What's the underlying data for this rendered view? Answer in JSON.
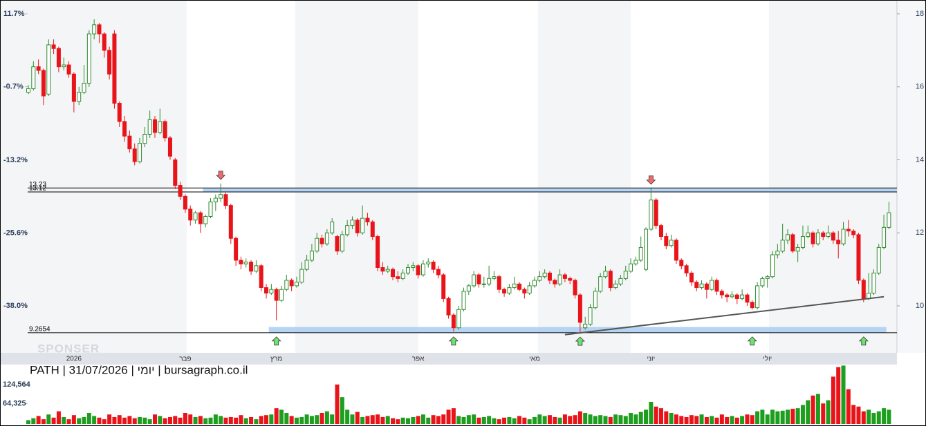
{
  "chart_data": {
    "type": "candlestick",
    "caption": "PATH | 31/07/2026 | יומי | bursagraph.co.il",
    "watermark": "SPONSER",
    "up_color": "#2e8b2e",
    "down_color": "#e8141a",
    "ylim": [
      8.733,
      18.284
    ],
    "yticks": [
      10,
      12,
      14,
      16,
      18
    ],
    "y2lim": [
      -45.87,
      13.46
    ],
    "y2ticks": [
      {
        "value": 11.7,
        "label": "11.7%"
      },
      {
        "value": -0.7,
        "label": "-0.7%"
      },
      {
        "value": -13.2,
        "label": "-13.2%"
      },
      {
        "value": -25.6,
        "label": "-25.6%"
      },
      {
        "value": -38.0,
        "label": "-38.0%"
      }
    ],
    "vlim": [
      0,
      151000
    ],
    "vticks": [
      {
        "value": 124564,
        "label": "124,564"
      },
      {
        "value": 64325,
        "label": "64,325"
      }
    ],
    "x_labels": [
      {
        "index": 9,
        "label": "2026"
      },
      {
        "index": 31,
        "label": "פבר"
      },
      {
        "index": 49,
        "label": "מרץ"
      },
      {
        "index": 77,
        "label": "אפר"
      },
      {
        "index": 100,
        "label": "מאי"
      },
      {
        "index": 123,
        "label": "יוני"
      },
      {
        "index": 146,
        "label": "יולי"
      }
    ],
    "levels": [
      13.23,
      13.12,
      9.2654
    ],
    "zones": [
      {
        "from": 13.12,
        "to": 13.23,
        "start": 35,
        "end": 171
      },
      {
        "from": 9.2654,
        "to": 9.42,
        "start": 48,
        "end": 169
      }
    ],
    "trendline": [
      [
        106,
        9.21
      ],
      [
        169,
        10.25
      ]
    ],
    "signals": {
      "up": [
        49,
        84,
        109,
        143,
        165
      ],
      "down": [
        38,
        123
      ]
    },
    "candles": [
      [
        15.85,
        16.05,
        15.8,
        15.95
      ],
      [
        15.95,
        16.7,
        15.9,
        16.55
      ],
      [
        16.55,
        16.75,
        16.35,
        16.45
      ],
      [
        16.45,
        16.5,
        15.5,
        15.75
      ],
      [
        15.8,
        17.3,
        15.75,
        17.15
      ],
      [
        17.15,
        17.3,
        16.9,
        17.05
      ],
      [
        17.05,
        17.1,
        16.4,
        16.55
      ],
      [
        16.55,
        16.8,
        16.45,
        16.6
      ],
      [
        16.6,
        16.7,
        16.25,
        16.35
      ],
      [
        16.35,
        16.4,
        15.3,
        15.6
      ],
      [
        15.6,
        16.0,
        15.5,
        15.85
      ],
      [
        15.85,
        16.6,
        15.8,
        16.1
      ],
      [
        16.1,
        17.55,
        16.0,
        17.45
      ],
      [
        17.45,
        17.85,
        17.3,
        17.7
      ],
      [
        17.7,
        17.75,
        17.2,
        17.45
      ],
      [
        17.45,
        17.5,
        16.8,
        17.0
      ],
      [
        17.0,
        17.1,
        16.2,
        16.35
      ],
      [
        17.45,
        17.55,
        15.4,
        15.55
      ],
      [
        15.55,
        15.6,
        14.9,
        15.05
      ],
      [
        15.05,
        15.2,
        14.5,
        14.65
      ],
      [
        14.65,
        14.8,
        14.2,
        14.3
      ],
      [
        14.3,
        14.45,
        13.85,
        13.95
      ],
      [
        13.95,
        14.6,
        13.9,
        14.45
      ],
      [
        14.45,
        14.9,
        14.35,
        14.7
      ],
      [
        14.7,
        15.35,
        14.6,
        15.1
      ],
      [
        15.1,
        15.2,
        14.6,
        14.75
      ],
      [
        14.75,
        15.4,
        14.7,
        15.05
      ],
      [
        15.05,
        15.1,
        14.5,
        14.6
      ],
      [
        14.6,
        14.65,
        14.0,
        14.1
      ],
      [
        14.0,
        14.05,
        13.2,
        13.3
      ],
      [
        13.3,
        13.4,
        12.9,
        13.0
      ],
      [
        13.0,
        13.05,
        12.55,
        12.65
      ],
      [
        12.65,
        12.75,
        12.2,
        12.35
      ],
      [
        12.35,
        12.6,
        12.25,
        12.55
      ],
      [
        12.55,
        12.6,
        12.0,
        12.25
      ],
      [
        12.25,
        12.5,
        12.15,
        12.45
      ],
      [
        12.45,
        12.95,
        12.4,
        12.85
      ],
      [
        12.85,
        13.05,
        12.6,
        12.95
      ],
      [
        12.95,
        13.35,
        12.85,
        13.05
      ],
      [
        13.05,
        13.1,
        12.65,
        12.75
      ],
      [
        12.75,
        12.8,
        11.7,
        11.85
      ],
      [
        11.85,
        11.9,
        11.1,
        11.25
      ],
      [
        11.25,
        11.35,
        11.0,
        11.15
      ],
      [
        11.15,
        11.3,
        11.05,
        11.2
      ],
      [
        11.2,
        11.25,
        10.85,
        10.95
      ],
      [
        10.95,
        11.25,
        10.9,
        11.1
      ],
      [
        11.1,
        11.15,
        10.4,
        10.5
      ],
      [
        10.5,
        10.6,
        10.2,
        10.35
      ],
      [
        10.35,
        10.6,
        10.3,
        10.45
      ],
      [
        10.45,
        10.5,
        9.6,
        10.15
      ],
      [
        10.15,
        10.55,
        10.1,
        10.45
      ],
      [
        10.45,
        10.85,
        10.4,
        10.7
      ],
      [
        10.7,
        10.75,
        10.4,
        10.55
      ],
      [
        10.55,
        10.8,
        10.5,
        10.65
      ],
      [
        10.65,
        11.2,
        10.6,
        11.0
      ],
      [
        11.0,
        11.4,
        10.95,
        11.25
      ],
      [
        11.25,
        11.7,
        11.2,
        11.5
      ],
      [
        11.5,
        12.0,
        11.45,
        11.85
      ],
      [
        11.85,
        11.95,
        11.6,
        11.7
      ],
      [
        11.7,
        12.1,
        11.65,
        12.0
      ],
      [
        12.0,
        12.4,
        11.95,
        12.3
      ],
      [
        11.9,
        11.95,
        11.4,
        11.5
      ],
      [
        11.5,
        12.05,
        11.45,
        11.95
      ],
      [
        11.95,
        12.35,
        11.9,
        12.2
      ],
      [
        12.2,
        12.45,
        12.1,
        12.35
      ],
      [
        12.35,
        12.4,
        11.9,
        12.0
      ],
      [
        12.0,
        12.75,
        11.95,
        12.4
      ],
      [
        12.4,
        12.55,
        12.2,
        12.3
      ],
      [
        12.3,
        12.35,
        11.8,
        11.9
      ],
      [
        11.9,
        11.95,
        10.95,
        11.05
      ],
      [
        11.05,
        11.2,
        10.85,
        10.95
      ],
      [
        10.95,
        11.1,
        10.9,
        11.0
      ],
      [
        11.0,
        11.05,
        10.7,
        10.8
      ],
      [
        10.8,
        10.95,
        10.65,
        10.75
      ],
      [
        10.75,
        11.0,
        10.7,
        10.9
      ],
      [
        10.9,
        11.15,
        10.85,
        11.05
      ],
      [
        11.05,
        11.2,
        10.95,
        11.1
      ],
      [
        11.1,
        11.15,
        10.75,
        10.85
      ],
      [
        10.85,
        11.25,
        10.8,
        11.15
      ],
      [
        11.15,
        11.3,
        11.05,
        11.2
      ],
      [
        11.2,
        11.25,
        10.9,
        11.0
      ],
      [
        11.0,
        11.1,
        10.75,
        10.85
      ],
      [
        10.85,
        10.9,
        10.1,
        10.2
      ],
      [
        10.2,
        10.25,
        9.65,
        9.75
      ],
      [
        9.75,
        9.8,
        9.3,
        9.4
      ],
      [
        9.4,
        10.0,
        9.35,
        9.9
      ],
      [
        9.9,
        10.5,
        9.85,
        10.4
      ],
      [
        10.4,
        10.6,
        10.3,
        10.55
      ],
      [
        10.55,
        10.95,
        10.5,
        10.85
      ],
      [
        10.85,
        10.9,
        10.5,
        10.6
      ],
      [
        10.6,
        10.8,
        10.5,
        10.6
      ],
      [
        10.6,
        11.1,
        10.55,
        10.75
      ],
      [
        10.75,
        10.95,
        10.7,
        10.8
      ],
      [
        10.8,
        10.85,
        10.35,
        10.45
      ],
      [
        10.45,
        10.5,
        10.25,
        10.35
      ],
      [
        10.35,
        10.6,
        10.3,
        10.5
      ],
      [
        10.5,
        10.8,
        10.45,
        10.6
      ],
      [
        10.6,
        10.65,
        10.4,
        10.45
      ],
      [
        10.45,
        10.5,
        10.2,
        10.35
      ],
      [
        10.35,
        10.65,
        10.3,
        10.55
      ],
      [
        10.55,
        10.8,
        10.5,
        10.7
      ],
      [
        10.7,
        10.95,
        10.65,
        10.8
      ],
      [
        10.8,
        11.0,
        10.75,
        10.9
      ],
      [
        10.9,
        10.95,
        10.6,
        10.7
      ],
      [
        10.7,
        10.75,
        10.5,
        10.6
      ],
      [
        10.6,
        11.0,
        10.55,
        10.85
      ],
      [
        10.85,
        10.9,
        10.65,
        10.75
      ],
      [
        10.75,
        10.8,
        10.6,
        10.7
      ],
      [
        10.7,
        10.75,
        10.2,
        10.3
      ],
      [
        10.3,
        10.35,
        9.26,
        9.55
      ],
      [
        9.4,
        9.7,
        9.35,
        9.5
      ],
      [
        9.5,
        10.05,
        9.45,
        9.95
      ],
      [
        9.95,
        10.5,
        9.9,
        10.4
      ],
      [
        10.4,
        10.9,
        10.35,
        10.8
      ],
      [
        10.8,
        11.1,
        10.75,
        10.95
      ],
      [
        10.95,
        11.0,
        10.4,
        10.5
      ],
      [
        10.5,
        10.7,
        10.45,
        10.6
      ],
      [
        10.6,
        10.85,
        10.55,
        10.75
      ],
      [
        10.75,
        11.1,
        10.7,
        10.95
      ],
      [
        10.95,
        11.3,
        10.9,
        11.15
      ],
      [
        11.15,
        11.35,
        11.1,
        11.25
      ],
      [
        11.25,
        11.9,
        11.2,
        11.6
      ],
      [
        11.0,
        12.15,
        10.95,
        12.1
      ],
      [
        12.1,
        13.22,
        12.05,
        12.9
      ],
      [
        12.9,
        12.95,
        12.1,
        12.2
      ],
      [
        12.2,
        12.25,
        11.8,
        11.9
      ],
      [
        11.9,
        12.0,
        11.55,
        11.65
      ],
      [
        11.65,
        11.95,
        11.6,
        11.8
      ],
      [
        11.8,
        11.85,
        11.15,
        11.25
      ],
      [
        11.25,
        11.3,
        11.0,
        11.1
      ],
      [
        11.1,
        11.15,
        10.8,
        10.9
      ],
      [
        10.9,
        10.95,
        10.55,
        10.65
      ],
      [
        10.65,
        10.7,
        10.4,
        10.5
      ],
      [
        10.5,
        10.7,
        10.45,
        10.6
      ],
      [
        10.6,
        10.65,
        10.2,
        10.45
      ],
      [
        10.45,
        10.8,
        10.4,
        10.7
      ],
      [
        10.7,
        10.75,
        10.3,
        10.4
      ],
      [
        10.4,
        10.45,
        10.2,
        10.3
      ],
      [
        10.3,
        10.35,
        10.1,
        10.25
      ],
      [
        10.25,
        10.4,
        10.2,
        10.3
      ],
      [
        10.3,
        10.35,
        10.05,
        10.2
      ],
      [
        10.2,
        10.45,
        10.15,
        10.3
      ],
      [
        10.3,
        10.35,
        10.0,
        10.1
      ],
      [
        10.1,
        10.15,
        9.9,
        9.95
      ],
      [
        9.95,
        10.65,
        9.9,
        10.55
      ],
      [
        10.55,
        10.8,
        10.5,
        10.75
      ],
      [
        10.75,
        10.85,
        10.5,
        10.8
      ],
      [
        10.8,
        11.5,
        10.75,
        11.4
      ],
      [
        11.4,
        11.7,
        11.3,
        11.5
      ],
      [
        11.5,
        12.25,
        11.45,
        11.8
      ],
      [
        11.8,
        12.1,
        11.7,
        11.95
      ],
      [
        11.95,
        12.0,
        11.45,
        11.5
      ],
      [
        11.5,
        11.7,
        11.2,
        11.6
      ],
      [
        11.6,
        12.2,
        11.55,
        11.9
      ],
      [
        11.9,
        12.2,
        11.85,
        12.0
      ],
      [
        12.0,
        12.05,
        11.6,
        11.7
      ],
      [
        11.7,
        12.1,
        11.65,
        12.0
      ],
      [
        12.0,
        12.05,
        11.8,
        11.9
      ],
      [
        11.9,
        12.2,
        11.85,
        12.0
      ],
      [
        12.0,
        12.05,
        11.7,
        11.8
      ],
      [
        11.8,
        12.05,
        11.3,
        11.7
      ],
      [
        11.7,
        12.3,
        11.65,
        12.1
      ],
      [
        12.1,
        12.35,
        11.9,
        12.05
      ],
      [
        12.05,
        12.1,
        11.85,
        11.95
      ],
      [
        11.95,
        12.0,
        10.6,
        10.7
      ],
      [
        10.7,
        10.75,
        10.1,
        10.2
      ],
      [
        10.2,
        10.9,
        10.15,
        10.35
      ],
      [
        10.35,
        11.0,
        10.3,
        10.9
      ],
      [
        10.9,
        11.7,
        10.85,
        11.6
      ],
      [
        11.6,
        12.5,
        11.55,
        12.15
      ],
      [
        12.15,
        12.85,
        12.1,
        12.55
      ]
    ],
    "volume": [
      12000,
      18000,
      25000,
      15000,
      30000,
      20000,
      40000,
      22000,
      15000,
      28000,
      18000,
      22000,
      35000,
      25000,
      20000,
      15000,
      30000,
      22000,
      28000,
      20000,
      25000,
      18000,
      22000,
      20000,
      15000,
      30000,
      25000,
      18000,
      22000,
      25000,
      20000,
      35000,
      30000,
      22000,
      25000,
      18000,
      20000,
      30000,
      25000,
      20000,
      22000,
      20000,
      28000,
      18000,
      22000,
      15000,
      25000,
      28000,
      30000,
      50000,
      45000,
      35000,
      25000,
      20000,
      22000,
      30000,
      25000,
      28000,
      35000,
      40000,
      30000,
      125000,
      85000,
      45000,
      30000,
      38000,
      22000,
      25000,
      28000,
      30000,
      22000,
      25000,
      18000,
      15000,
      20000,
      18000,
      22000,
      25000,
      30000,
      20000,
      28000,
      25000,
      30000,
      45000,
      50000,
      25000,
      22000,
      28000,
      30000,
      20000,
      22000,
      25000,
      18000,
      15000,
      20000,
      22000,
      18000,
      25000,
      20000,
      15000,
      22000,
      30000,
      25000,
      28000,
      22000,
      20000,
      30000,
      25000,
      28000,
      40000,
      35000,
      30000,
      25000,
      28000,
      25000,
      22000,
      30000,
      28000,
      25000,
      35000,
      30000,
      38000,
      45000,
      70000,
      55000,
      50000,
      40000,
      35000,
      30000,
      25000,
      22000,
      28000,
      25000,
      30000,
      22000,
      25000,
      20000,
      30000,
      22000,
      25000,
      20000,
      25000,
      30000,
      28000,
      40000,
      45000,
      30000,
      45000,
      40000,
      42000,
      45000,
      48000,
      50000,
      60000,
      75000,
      90000,
      95000,
      65000,
      75000,
      150000,
      180000,
      185000,
      110000,
      60000,
      55000,
      40000,
      45000,
      35000,
      40000,
      50000,
      45000
    ]
  }
}
